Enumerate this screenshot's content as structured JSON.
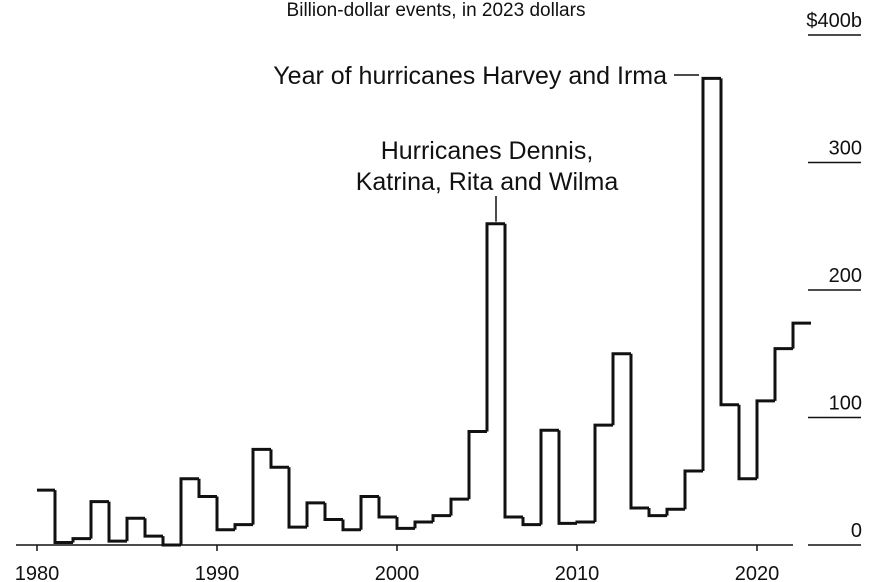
{
  "chart_data": {
    "type": "line",
    "subtitle": "Billion-dollar events, in 2023 dollars",
    "x": [
      1980,
      1981,
      1982,
      1983,
      1984,
      1985,
      1986,
      1987,
      1988,
      1989,
      1990,
      1991,
      1992,
      1993,
      1994,
      1995,
      1996,
      1997,
      1998,
      1999,
      2000,
      2001,
      2002,
      2003,
      2004,
      2005,
      2006,
      2007,
      2008,
      2009,
      2010,
      2011,
      2012,
      2013,
      2014,
      2015,
      2016,
      2017,
      2018,
      2019,
      2020,
      2021,
      2022
    ],
    "series": [
      {
        "values": [
          43,
          2,
          5,
          34,
          3,
          21,
          7,
          0,
          52,
          38,
          12,
          16,
          75,
          61,
          14,
          33,
          20,
          12,
          38,
          22,
          13,
          18,
          23,
          36,
          89,
          252,
          22,
          16,
          90,
          17,
          18,
          94,
          150,
          29,
          23,
          28,
          58,
          366,
          110,
          52,
          113,
          154,
          174
        ]
      }
    ],
    "xlim": [
      1980,
      2022
    ],
    "ylim": [
      0,
      400
    ],
    "x_ticks": [
      "1980",
      "1990",
      "2000",
      "2010",
      "2020"
    ],
    "y_ticks": [
      "0",
      "100",
      "200",
      "300",
      "$400b"
    ],
    "annotations": [
      {
        "year": 2005,
        "lines": [
          "Hurricanes Dennis,",
          "Katrina, Rita and Wilma"
        ]
      },
      {
        "year": 2017,
        "lines": [
          "Year of hurricanes Harvey and Irma"
        ]
      }
    ],
    "line_color": "#111111",
    "grid": false,
    "step": true
  }
}
